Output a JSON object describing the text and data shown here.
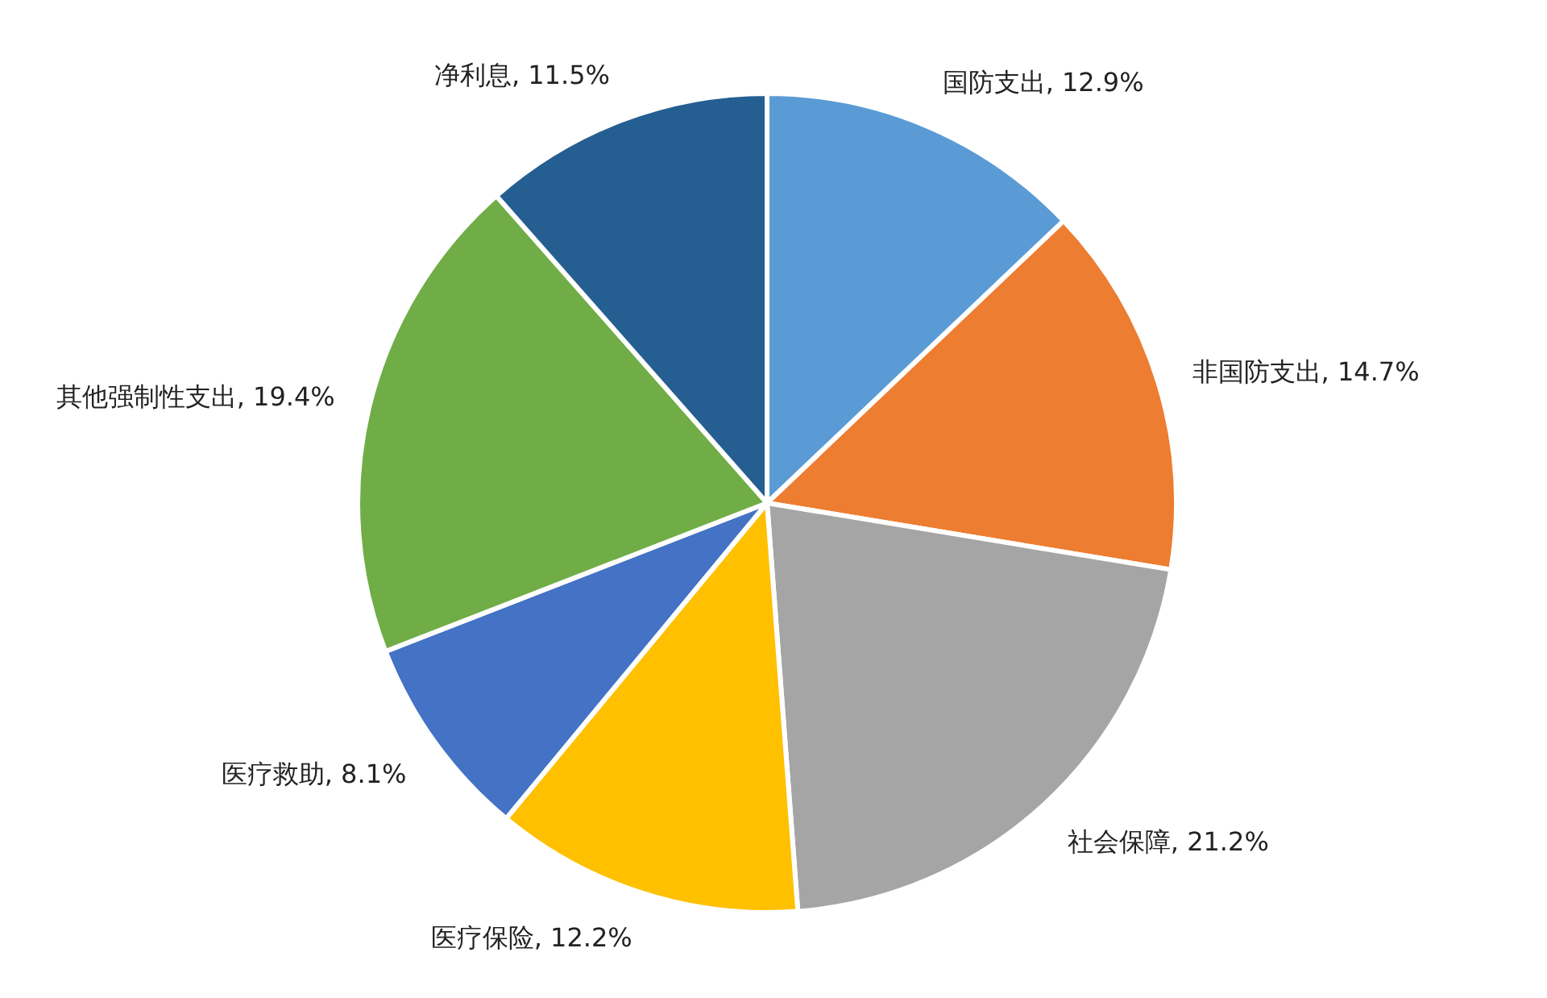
{
  "chart_data": {
    "type": "pie",
    "categories": [
      "国防支出",
      "非国防支出",
      "社会保障",
      "医疗保险",
      "医疗救助",
      "其他强制性支出",
      "净利息"
    ],
    "values": [
      12.9,
      14.7,
      21.2,
      12.2,
      8.1,
      19.4,
      11.5
    ],
    "colors": [
      "#5b9bd5",
      "#ed7d31",
      "#a5a5a5",
      "#ffc000",
      "#4472c4",
      "#70ad47",
      "#255e91"
    ],
    "value_labels": [
      "12.9%",
      "14.7%",
      "21.2%",
      "12.2%",
      "8.1%",
      "19.4%",
      "11.5%"
    ]
  }
}
